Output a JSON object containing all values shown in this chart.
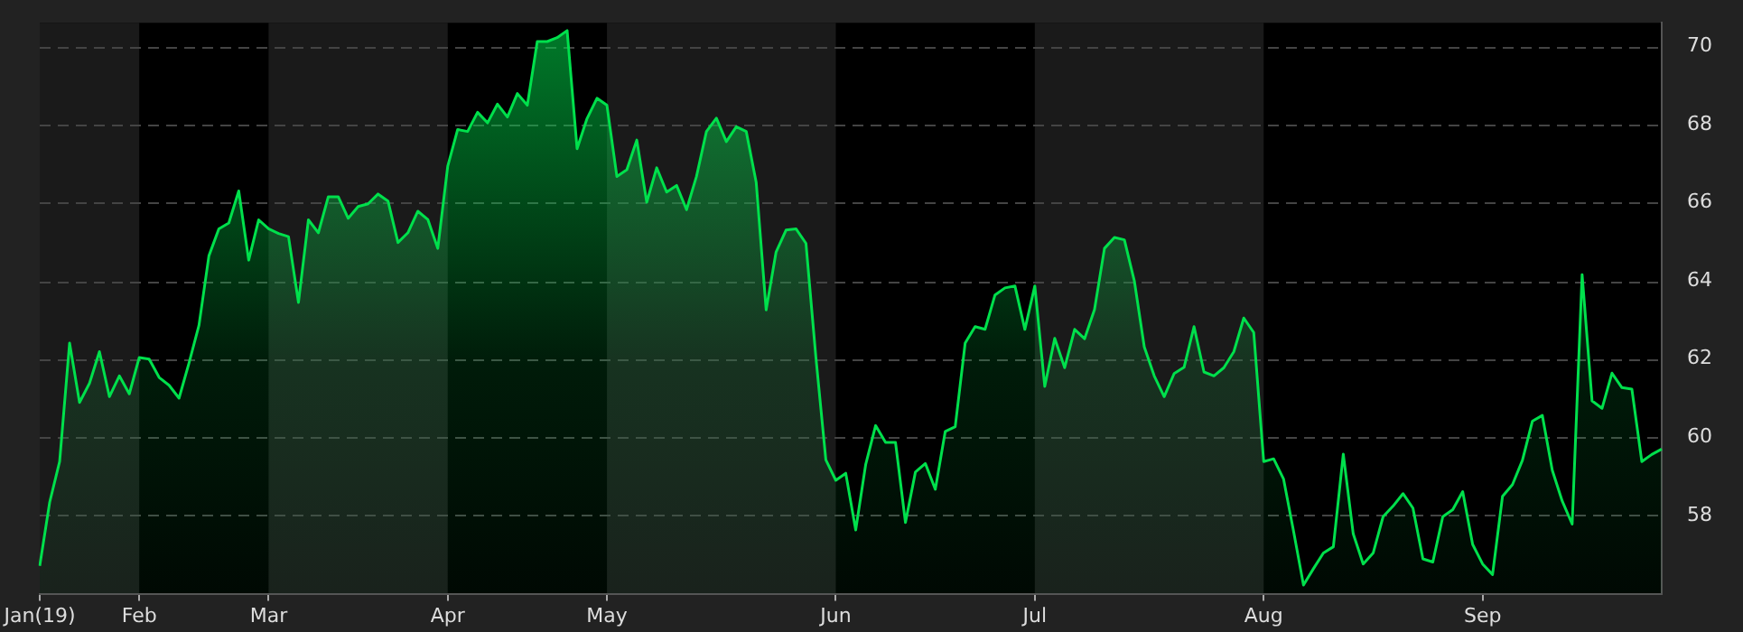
{
  "chart_data": {
    "type": "area",
    "categories": [
      "Jan(19)",
      null,
      null,
      null,
      null,
      null,
      null,
      null,
      null,
      null,
      "Feb",
      null,
      null,
      null,
      null,
      null,
      null,
      null,
      null,
      null,
      null,
      null,
      null,
      "Mar",
      null,
      null,
      null,
      null,
      null,
      null,
      null,
      null,
      null,
      null,
      null,
      null,
      null,
      null,
      null,
      null,
      null,
      "Apr",
      null,
      null,
      null,
      null,
      null,
      null,
      null,
      null,
      null,
      null,
      null,
      null,
      null,
      null,
      null,
      "May",
      null,
      null,
      null,
      null,
      null,
      null,
      null,
      null,
      null,
      null,
      null,
      null,
      null,
      null,
      null,
      null,
      null,
      null,
      null,
      null,
      null,
      null,
      "Jun",
      null,
      null,
      null,
      null,
      null,
      null,
      null,
      null,
      null,
      null,
      null,
      null,
      null,
      null,
      null,
      null,
      null,
      null,
      null,
      "Jul",
      null,
      null,
      null,
      null,
      null,
      null,
      null,
      null,
      null,
      null,
      null,
      null,
      null,
      null,
      null,
      null,
      null,
      null,
      null,
      null,
      null,
      null,
      "Aug",
      null,
      null,
      null,
      null,
      null,
      null,
      null,
      null,
      null,
      null,
      null,
      null,
      null,
      null,
      null,
      null,
      null,
      null,
      null,
      null,
      null,
      "Sep",
      null,
      null,
      null,
      null,
      null,
      null,
      null,
      null,
      null,
      null,
      null,
      null,
      null,
      null,
      null,
      null,
      null,
      null
    ],
    "series": [
      {
        "color": "#00e04c",
        "values": [
          56.71,
          58.34,
          59.38,
          62.41,
          60.89,
          61.38,
          62.19,
          61.04,
          61.57,
          61.11,
          62.04,
          62.0,
          61.53,
          61.33,
          61.0,
          61.9,
          62.86,
          64.64,
          65.33,
          65.48,
          66.3,
          64.53,
          65.56,
          65.33,
          65.21,
          65.13,
          63.45,
          65.56,
          65.23,
          66.15,
          66.15,
          65.6,
          65.9,
          65.97,
          66.22,
          66.04,
          64.98,
          65.23,
          65.78,
          65.57,
          64.83,
          66.93,
          67.87,
          67.82,
          68.31,
          68.04,
          68.52,
          68.19,
          68.79,
          68.49,
          70.12,
          70.12,
          70.22,
          70.4,
          67.38,
          68.15,
          68.67,
          68.49,
          66.67,
          66.84,
          67.6,
          66.01,
          66.89,
          66.27,
          66.44,
          65.82,
          66.67,
          67.82,
          68.16,
          67.56,
          67.94,
          67.82,
          66.52,
          63.26,
          64.74,
          65.3,
          65.33,
          64.96,
          62.04,
          59.42,
          58.9,
          59.08,
          57.63,
          59.3,
          60.3,
          59.87,
          59.87,
          57.82,
          59.11,
          59.33,
          58.67,
          60.15,
          60.27,
          62.41,
          62.83,
          62.76,
          63.64,
          63.82,
          63.87,
          62.76,
          63.87,
          61.3,
          62.53,
          61.78,
          62.76,
          62.52,
          63.27,
          64.83,
          65.11,
          65.05,
          64.0,
          62.31,
          61.57,
          61.04,
          61.63,
          61.79,
          62.83,
          61.67,
          61.57,
          61.78,
          62.19,
          63.05,
          62.68,
          59.38,
          59.45,
          58.93,
          57.6,
          56.22,
          56.64,
          57.04,
          57.2,
          59.57,
          57.53,
          56.76,
          57.04,
          57.97,
          58.24,
          58.56,
          58.19,
          56.89,
          56.81,
          57.97,
          58.15,
          58.61,
          57.26,
          56.76,
          56.49,
          58.49,
          58.79,
          59.41,
          60.41,
          60.56,
          59.16,
          58.37,
          57.78,
          64.16,
          60.93,
          60.74,
          61.64,
          61.27,
          61.23,
          59.38,
          59.56,
          59.7
        ]
      }
    ],
    "ylim": [
      56,
      70.6
    ],
    "yticks": [
      58,
      60,
      62,
      64,
      66,
      68,
      70
    ],
    "grid": "y",
    "legend": false,
    "bands": [
      {
        "axis": "x",
        "from": "Jan(19)",
        "to": "Feb",
        "color": "#1a1a1a"
      },
      {
        "axis": "x",
        "from": "Mar",
        "to": "Apr",
        "color": "#1a1a1a"
      },
      {
        "axis": "x",
        "from": "May",
        "to": "Jun",
        "color": "#1a1a1a"
      },
      {
        "axis": "x",
        "from": "Jul",
        "to": "Aug",
        "color": "#1a1a1a"
      }
    ]
  }
}
